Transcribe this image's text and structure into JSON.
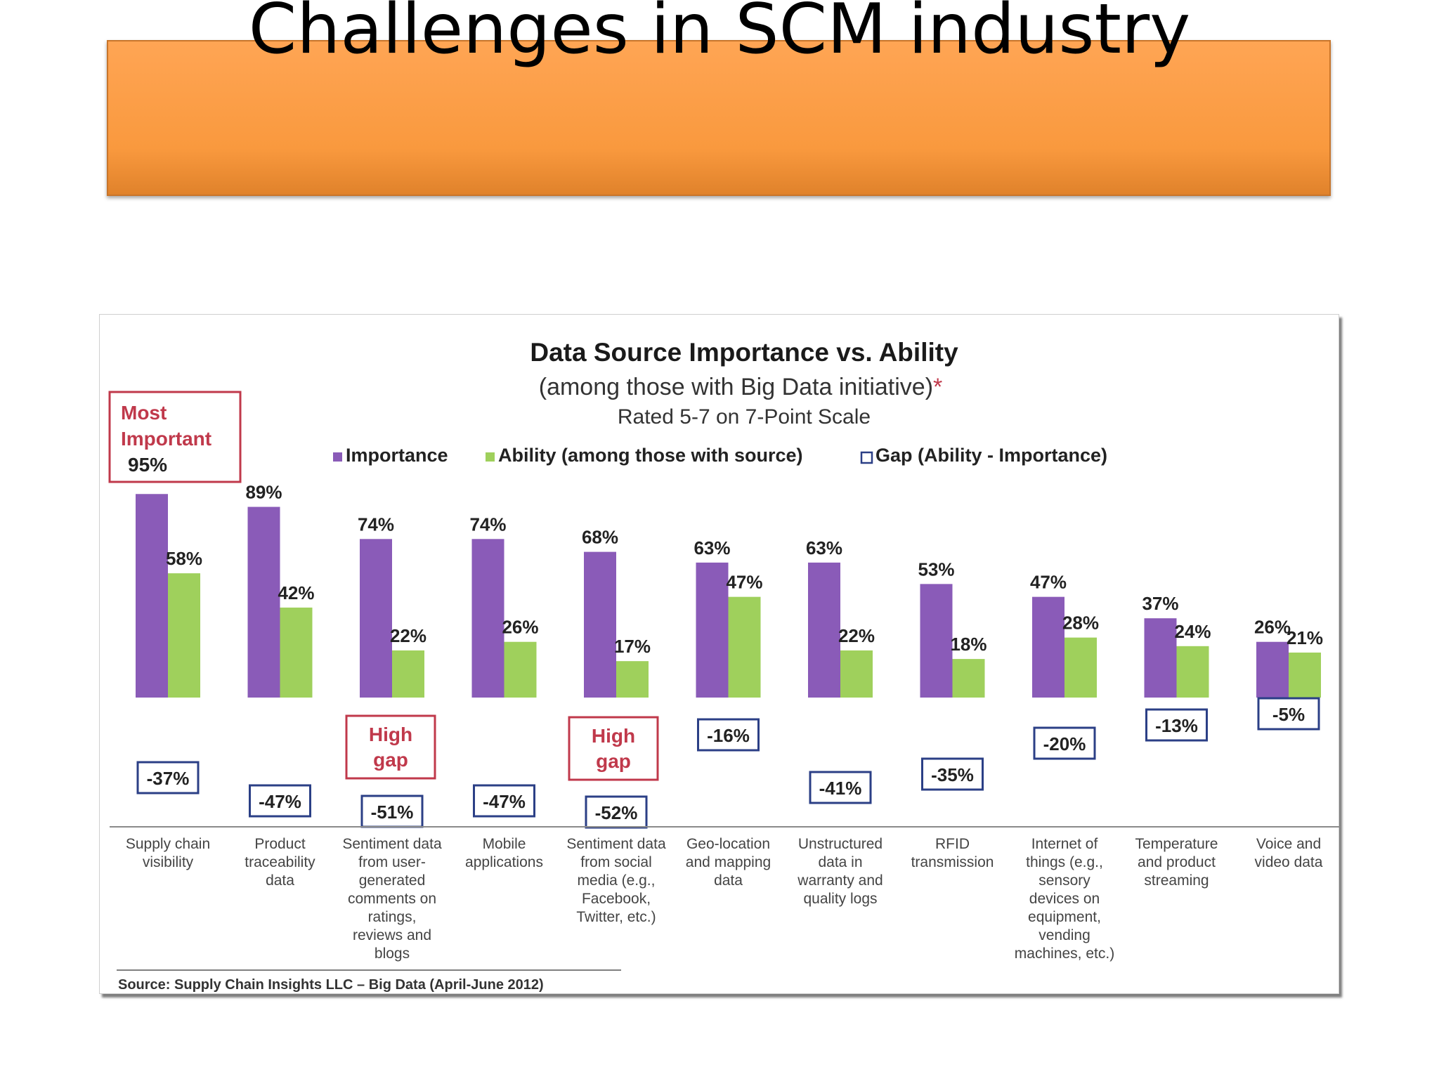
{
  "slide": {
    "title": "Challenges in SCM industry"
  },
  "colors": {
    "importance": "#8a5bb8",
    "ability": "#9fd05c",
    "gap_border": "#2b3f86",
    "callout_border": "#c0394b",
    "callout_text": "#c0394b",
    "banner": "#f9993e"
  },
  "chart_data": {
    "type": "bar",
    "title": "Data Source Importance vs. Ability",
    "subtitle": "(among those with Big Data initiative)",
    "subtitle_marker": "*",
    "subtitle2": "Rated 5-7 on 7-Point Scale",
    "legend": {
      "importance": "Importance",
      "ability": "Ability (among those with source)",
      "gap": "Gap (Ability - Importance)"
    },
    "categories": [
      "Supply chain visibility",
      "Product traceability data",
      "Sentiment data from user-generated comments on ratings, reviews and blogs",
      "Mobile applications",
      "Sentiment data from social media (e.g., Facebook, Twitter, etc.)",
      "Geo-location and mapping data",
      "Unstructured data in warranty and quality logs",
      "RFID transmission",
      "Internet of things (e.g., sensory devices on equipment, vending machines, etc.)",
      "Temperature and product streaming",
      "Voice and video data"
    ],
    "category_lines": [
      [
        "Supply chain",
        "visibility"
      ],
      [
        "Product",
        "traceability",
        "data"
      ],
      [
        "Sentiment data",
        "from user-",
        "generated",
        "comments on",
        "ratings,",
        "reviews and",
        "blogs"
      ],
      [
        "Mobile",
        "applications"
      ],
      [
        "Sentiment data",
        "from social",
        "media (e.g.,",
        "Facebook,",
        "Twitter, etc.)"
      ],
      [
        "Geo-location",
        "and mapping",
        "data"
      ],
      [
        "Unstructured",
        "data in",
        "warranty and",
        "quality logs"
      ],
      [
        "RFID",
        "transmission"
      ],
      [
        "Internet of",
        "things (e.g.,",
        "sensory",
        "devices on",
        "equipment,",
        "vending",
        "machines, etc.)"
      ],
      [
        "Temperature",
        "and product",
        "streaming"
      ],
      [
        "Voice and",
        "video data"
      ]
    ],
    "series": [
      {
        "name": "Importance",
        "values": [
          95,
          89,
          74,
          74,
          68,
          63,
          63,
          53,
          47,
          37,
          26
        ]
      },
      {
        "name": "Ability (among those with source)",
        "values": [
          58,
          42,
          22,
          26,
          17,
          47,
          22,
          18,
          28,
          24,
          21
        ]
      },
      {
        "name": "Gap (Ability - Importance)",
        "values": [
          -37,
          -47,
          -51,
          -47,
          -52,
          -16,
          -41,
          -35,
          -20,
          -13,
          -5
        ]
      }
    ],
    "importance_labels": [
      "89%",
      "74%",
      "74%",
      "68%",
      "63%",
      "63%",
      "53%",
      "47%",
      "37%",
      "26%"
    ],
    "ability_labels": [
      "58%",
      "42%",
      "22%",
      "26%",
      "17%",
      "47%",
      "22%",
      "18%",
      "28%",
      "24%",
      "21%"
    ],
    "gap_labels": [
      "-37%",
      "-47%",
      "-51%",
      "-47%",
      "-52%",
      "-16%",
      "-41%",
      "-35%",
      "-20%",
      "-13%",
      "-5%"
    ],
    "callouts": {
      "most_important": {
        "line1": "Most",
        "line2": "Important",
        "value": "95%"
      },
      "high_gap_1": {
        "line1": "High",
        "line2": "gap"
      },
      "high_gap_2": {
        "line1": "High",
        "line2": "gap"
      }
    },
    "source": "Source: Supply Chain Insights LLC – Big Data (April-June 2012)",
    "ylim": [
      0,
      100
    ],
    "legend_position": "top"
  }
}
